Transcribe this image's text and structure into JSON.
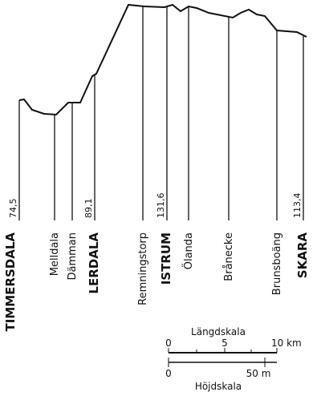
{
  "stations": [
    {
      "name": "TIMMERSDALA",
      "elevation": "74,5"
    },
    {
      "name": "Melldala"
    },
    {
      "name": "Dämman"
    },
    {
      "name": "LERDALA",
      "elevation": "89,1"
    },
    {
      "name": "Remningstorp"
    },
    {
      "name": "ISTRUM",
      "elevation": "131,6"
    },
    {
      "name": "Ölanda"
    },
    {
      "name": "Brånecke"
    },
    {
      "name": "Brunsboäng"
    },
    {
      "name": "SKARA",
      "elevation": "113,4"
    }
  ],
  "length_scale": {
    "title": "Längdskala",
    "ticks": [
      "0",
      "5",
      "10 km"
    ]
  },
  "height_scale": {
    "title": "Höjdskala",
    "ticks": [
      "0",
      "50 m"
    ]
  }
}
